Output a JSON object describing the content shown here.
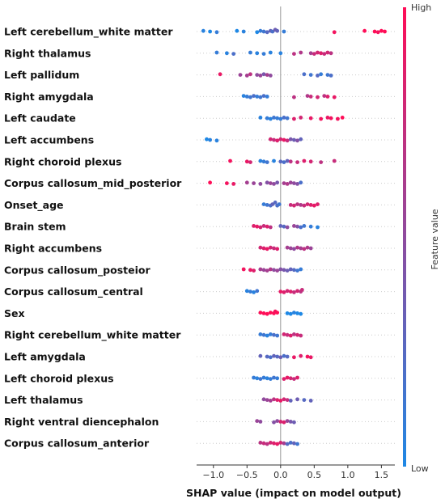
{
  "chart_data": {
    "type": "scatter",
    "subtype": "shap-beeswarm",
    "title": "",
    "xlabel": "SHAP value (impact on model output)",
    "ylabel": "",
    "xlim": [
      -1.25,
      1.7
    ],
    "xticks": [
      -1.0,
      -0.5,
      0.0,
      0.5,
      1.0,
      1.5
    ],
    "xtick_labels": [
      "−1.0",
      "−0.5",
      "0.0",
      "0.5",
      "1.0",
      "1.5"
    ],
    "grid": false,
    "colorbar": {
      "title": "Feature value",
      "high_label": "High",
      "low_label": "Low",
      "low_color": "#1E88E5",
      "high_color": "#FF0D57"
    },
    "features": [
      {
        "name": "Left cerebellum_white matter",
        "points": [
          [
            -1.15,
            0.05
          ],
          [
            -1.05,
            0.0
          ],
          [
            -0.95,
            0.1
          ],
          [
            -0.65,
            0.0
          ],
          [
            -0.55,
            0.05
          ],
          [
            -0.35,
            0.0
          ],
          [
            -0.3,
            0.1
          ],
          [
            -0.25,
            0.15
          ],
          [
            -0.2,
            0.25
          ],
          [
            -0.15,
            0.3
          ],
          [
            -0.12,
            0.2
          ],
          [
            -0.08,
            0.35
          ],
          [
            -0.05,
            0.3
          ],
          [
            0.05,
            0.1
          ],
          [
            0.8,
            0.95
          ],
          [
            1.25,
            1.0
          ],
          [
            1.4,
            1.0
          ],
          [
            1.45,
            0.95
          ],
          [
            1.5,
            1.0
          ],
          [
            1.55,
            1.0
          ]
        ]
      },
      {
        "name": "Right thalamus",
        "points": [
          [
            -0.95,
            0.1
          ],
          [
            -0.8,
            0.05
          ],
          [
            -0.7,
            0.2
          ],
          [
            -0.45,
            0.1
          ],
          [
            -0.35,
            0.05
          ],
          [
            -0.25,
            0.1
          ],
          [
            -0.15,
            0.05
          ],
          [
            0.0,
            0.05
          ],
          [
            0.2,
            0.7
          ],
          [
            0.3,
            0.65
          ],
          [
            0.45,
            0.6
          ],
          [
            0.5,
            0.75
          ],
          [
            0.55,
            0.8
          ],
          [
            0.6,
            0.85
          ],
          [
            0.65,
            0.75
          ],
          [
            0.7,
            0.8
          ],
          [
            0.75,
            0.7
          ]
        ]
      },
      {
        "name": "Left pallidum",
        "points": [
          [
            -0.9,
            0.9
          ],
          [
            -0.6,
            0.55
          ],
          [
            -0.5,
            0.6
          ],
          [
            -0.45,
            0.7
          ],
          [
            -0.35,
            0.5
          ],
          [
            -0.3,
            0.55
          ],
          [
            -0.25,
            0.4
          ],
          [
            -0.2,
            0.6
          ],
          [
            -0.15,
            0.5
          ],
          [
            0.35,
            0.2
          ],
          [
            0.45,
            0.15
          ],
          [
            0.55,
            0.25
          ],
          [
            0.6,
            0.1
          ],
          [
            0.7,
            0.15
          ],
          [
            0.75,
            0.2
          ]
        ]
      },
      {
        "name": "Right amygdala",
        "points": [
          [
            -0.55,
            0.05
          ],
          [
            -0.5,
            0.1
          ],
          [
            -0.45,
            0.15
          ],
          [
            -0.4,
            0.2
          ],
          [
            -0.35,
            0.1
          ],
          [
            -0.3,
            0.15
          ],
          [
            -0.25,
            0.2
          ],
          [
            -0.2,
            0.1
          ],
          [
            0.2,
            0.7
          ],
          [
            0.4,
            0.65
          ],
          [
            0.45,
            0.75
          ],
          [
            0.55,
            0.8
          ],
          [
            0.65,
            0.7
          ],
          [
            0.7,
            0.85
          ],
          [
            0.8,
            0.9
          ]
        ]
      },
      {
        "name": "Left caudate",
        "points": [
          [
            -0.3,
            0.05
          ],
          [
            -0.2,
            0.1
          ],
          [
            -0.15,
            0.05
          ],
          [
            -0.1,
            0.15
          ],
          [
            -0.05,
            0.1
          ],
          [
            0.0,
            0.1
          ],
          [
            0.05,
            0.2
          ],
          [
            0.1,
            0.15
          ],
          [
            0.2,
            0.85
          ],
          [
            0.3,
            0.8
          ],
          [
            0.45,
            0.9
          ],
          [
            0.6,
            0.95
          ],
          [
            0.7,
            0.9
          ],
          [
            0.75,
            0.95
          ],
          [
            0.85,
            0.95
          ],
          [
            0.92,
            1.0
          ]
        ]
      },
      {
        "name": "Left accumbens",
        "points": [
          [
            -1.1,
            0.0
          ],
          [
            -1.05,
            0.05
          ],
          [
            -0.95,
            0.05
          ],
          [
            -0.15,
            0.8
          ],
          [
            -0.1,
            0.75
          ],
          [
            -0.05,
            0.85
          ],
          [
            0.0,
            0.8
          ],
          [
            0.05,
            0.9
          ],
          [
            0.1,
            0.75
          ],
          [
            0.15,
            0.4
          ],
          [
            0.2,
            0.35
          ],
          [
            0.25,
            0.45
          ],
          [
            0.3,
            0.3
          ]
        ]
      },
      {
        "name": "Right choroid plexus",
        "points": [
          [
            -0.75,
            0.95
          ],
          [
            -0.5,
            0.9
          ],
          [
            -0.45,
            0.8
          ],
          [
            -0.3,
            0.05
          ],
          [
            -0.25,
            0.1
          ],
          [
            -0.2,
            0.15
          ],
          [
            -0.1,
            0.05
          ],
          [
            0.0,
            0.25
          ],
          [
            0.05,
            0.2
          ],
          [
            0.1,
            0.3
          ],
          [
            0.15,
            0.7
          ],
          [
            0.25,
            0.75
          ],
          [
            0.35,
            0.85
          ],
          [
            0.45,
            0.8
          ],
          [
            0.6,
            0.7
          ],
          [
            0.8,
            0.75
          ]
        ]
      },
      {
        "name": "Corpus callosum_mid_posterior",
        "points": [
          [
            -1.05,
            1.0
          ],
          [
            -0.8,
            0.95
          ],
          [
            -0.7,
            0.9
          ],
          [
            -0.5,
            0.6
          ],
          [
            -0.4,
            0.55
          ],
          [
            -0.3,
            0.5
          ],
          [
            -0.2,
            0.45
          ],
          [
            -0.15,
            0.55
          ],
          [
            -0.1,
            0.5
          ],
          [
            -0.05,
            0.4
          ],
          [
            0.05,
            0.6
          ],
          [
            0.1,
            0.65
          ],
          [
            0.15,
            0.55
          ],
          [
            0.2,
            0.5
          ],
          [
            0.25,
            0.45
          ],
          [
            0.3,
            0.2
          ]
        ]
      },
      {
        "name": "Onset_age",
        "points": [
          [
            -0.25,
            0.1
          ],
          [
            -0.2,
            0.15
          ],
          [
            -0.15,
            0.2
          ],
          [
            -0.12,
            0.3
          ],
          [
            -0.08,
            0.25
          ],
          [
            -0.05,
            0.2
          ],
          [
            -0.02,
            0.15
          ],
          [
            0.15,
            0.75
          ],
          [
            0.2,
            0.8
          ],
          [
            0.25,
            0.7
          ],
          [
            0.3,
            0.65
          ],
          [
            0.35,
            0.75
          ],
          [
            0.4,
            0.8
          ],
          [
            0.45,
            0.85
          ],
          [
            0.5,
            0.9
          ],
          [
            0.55,
            0.85
          ]
        ]
      },
      {
        "name": "Brain stem",
        "points": [
          [
            -0.4,
            0.85
          ],
          [
            -0.35,
            0.9
          ],
          [
            -0.3,
            0.8
          ],
          [
            -0.25,
            0.75
          ],
          [
            -0.2,
            0.85
          ],
          [
            -0.15,
            0.7
          ],
          [
            0.0,
            0.3
          ],
          [
            0.05,
            0.25
          ],
          [
            0.1,
            0.5
          ],
          [
            0.2,
            0.55
          ],
          [
            0.25,
            0.45
          ],
          [
            0.3,
            0.2
          ],
          [
            0.35,
            0.15
          ],
          [
            0.45,
            0.1
          ],
          [
            0.55,
            0.05
          ]
        ]
      },
      {
        "name": "Right accumbens",
        "points": [
          [
            -0.3,
            0.8
          ],
          [
            -0.25,
            0.85
          ],
          [
            -0.2,
            0.9
          ],
          [
            -0.15,
            0.8
          ],
          [
            -0.1,
            0.75
          ],
          [
            -0.05,
            0.85
          ],
          [
            0.1,
            0.6
          ],
          [
            0.15,
            0.55
          ],
          [
            0.2,
            0.5
          ],
          [
            0.25,
            0.65
          ],
          [
            0.3,
            0.6
          ],
          [
            0.35,
            0.7
          ],
          [
            0.4,
            0.65
          ],
          [
            0.45,
            0.55
          ]
        ]
      },
      {
        "name": "Corpus callosum_posteior",
        "points": [
          [
            -0.55,
            0.95
          ],
          [
            -0.45,
            0.9
          ],
          [
            -0.4,
            0.85
          ],
          [
            -0.3,
            0.6
          ],
          [
            -0.25,
            0.55
          ],
          [
            -0.2,
            0.6
          ],
          [
            -0.15,
            0.65
          ],
          [
            -0.1,
            0.5
          ],
          [
            -0.05,
            0.55
          ],
          [
            0.0,
            0.45
          ],
          [
            0.05,
            0.4
          ],
          [
            0.1,
            0.35
          ],
          [
            0.15,
            0.3
          ],
          [
            0.2,
            0.25
          ],
          [
            0.25,
            0.15
          ],
          [
            0.3,
            0.1
          ]
        ]
      },
      {
        "name": "Corpus callosum_central",
        "points": [
          [
            -0.5,
            0.05
          ],
          [
            -0.45,
            0.1
          ],
          [
            -0.4,
            0.05
          ],
          [
            -0.35,
            0.15
          ],
          [
            0.0,
            0.9
          ],
          [
            0.05,
            0.85
          ],
          [
            0.1,
            0.8
          ],
          [
            0.15,
            0.85
          ],
          [
            0.2,
            0.75
          ],
          [
            0.25,
            0.8
          ],
          [
            0.3,
            0.7
          ],
          [
            0.32,
            0.75
          ]
        ]
      },
      {
        "name": "Sex",
        "points": [
          [
            -0.3,
            1.0
          ],
          [
            -0.25,
            1.0
          ],
          [
            -0.2,
            1.0
          ],
          [
            -0.15,
            1.0
          ],
          [
            -0.1,
            1.0
          ],
          [
            -0.08,
            0.95
          ],
          [
            -0.05,
            1.0
          ],
          [
            0.1,
            0.0
          ],
          [
            0.15,
            0.0
          ],
          [
            0.2,
            0.05
          ],
          [
            0.25,
            0.0
          ],
          [
            0.3,
            0.0
          ]
        ]
      },
      {
        "name": "Right cerebellum_white matter",
        "points": [
          [
            -0.3,
            0.1
          ],
          [
            -0.25,
            0.15
          ],
          [
            -0.2,
            0.05
          ],
          [
            -0.15,
            0.1
          ],
          [
            -0.1,
            0.2
          ],
          [
            -0.05,
            0.15
          ],
          [
            0.05,
            0.8
          ],
          [
            0.1,
            0.75
          ],
          [
            0.15,
            0.85
          ],
          [
            0.2,
            0.7
          ],
          [
            0.25,
            0.8
          ],
          [
            0.3,
            0.75
          ]
        ]
      },
      {
        "name": "Left amygdala",
        "points": [
          [
            -0.3,
            0.3
          ],
          [
            -0.2,
            0.25
          ],
          [
            -0.15,
            0.2
          ],
          [
            -0.1,
            0.3
          ],
          [
            -0.05,
            0.25
          ],
          [
            0.0,
            0.35
          ],
          [
            0.05,
            0.2
          ],
          [
            0.1,
            0.25
          ],
          [
            0.2,
            0.9
          ],
          [
            0.3,
            0.85
          ],
          [
            0.4,
            0.95
          ],
          [
            0.45,
            0.9
          ]
        ]
      },
      {
        "name": "Left choroid plexus",
        "points": [
          [
            -0.4,
            0.1
          ],
          [
            -0.35,
            0.05
          ],
          [
            -0.3,
            0.15
          ],
          [
            -0.25,
            0.1
          ],
          [
            -0.2,
            0.05
          ],
          [
            -0.15,
            0.1
          ],
          [
            -0.1,
            0.15
          ],
          [
            -0.05,
            0.1
          ],
          [
            0.05,
            0.85
          ],
          [
            0.1,
            0.9
          ],
          [
            0.15,
            0.8
          ],
          [
            0.2,
            0.75
          ],
          [
            0.25,
            0.85
          ]
        ]
      },
      {
        "name": "Left thalamus",
        "points": [
          [
            -0.25,
            0.5
          ],
          [
            -0.2,
            0.55
          ],
          [
            -0.15,
            0.6
          ],
          [
            -0.1,
            0.7
          ],
          [
            -0.05,
            0.85
          ],
          [
            0.0,
            0.9
          ],
          [
            0.05,
            0.8
          ],
          [
            0.1,
            0.75
          ],
          [
            0.15,
            0.3
          ],
          [
            0.25,
            0.35
          ],
          [
            0.35,
            0.25
          ],
          [
            0.45,
            0.3
          ]
        ]
      },
      {
        "name": "Right ventral diencephalon",
        "points": [
          [
            -0.35,
            0.55
          ],
          [
            -0.3,
            0.5
          ],
          [
            -0.1,
            0.45
          ],
          [
            -0.05,
            0.5
          ],
          [
            0.0,
            0.8
          ],
          [
            0.05,
            0.85
          ],
          [
            0.1,
            0.55
          ],
          [
            0.15,
            0.4
          ],
          [
            0.2,
            0.35
          ]
        ]
      },
      {
        "name": "Corpus callosum_anterior",
        "points": [
          [
            -0.3,
            0.7
          ],
          [
            -0.25,
            0.75
          ],
          [
            -0.2,
            0.7
          ],
          [
            -0.15,
            0.8
          ],
          [
            -0.1,
            0.85
          ],
          [
            -0.05,
            0.9
          ],
          [
            0.0,
            0.8
          ],
          [
            0.05,
            0.6
          ],
          [
            0.1,
            0.25
          ],
          [
            0.15,
            0.2
          ],
          [
            0.2,
            0.3
          ],
          [
            0.25,
            0.15
          ]
        ]
      }
    ]
  }
}
